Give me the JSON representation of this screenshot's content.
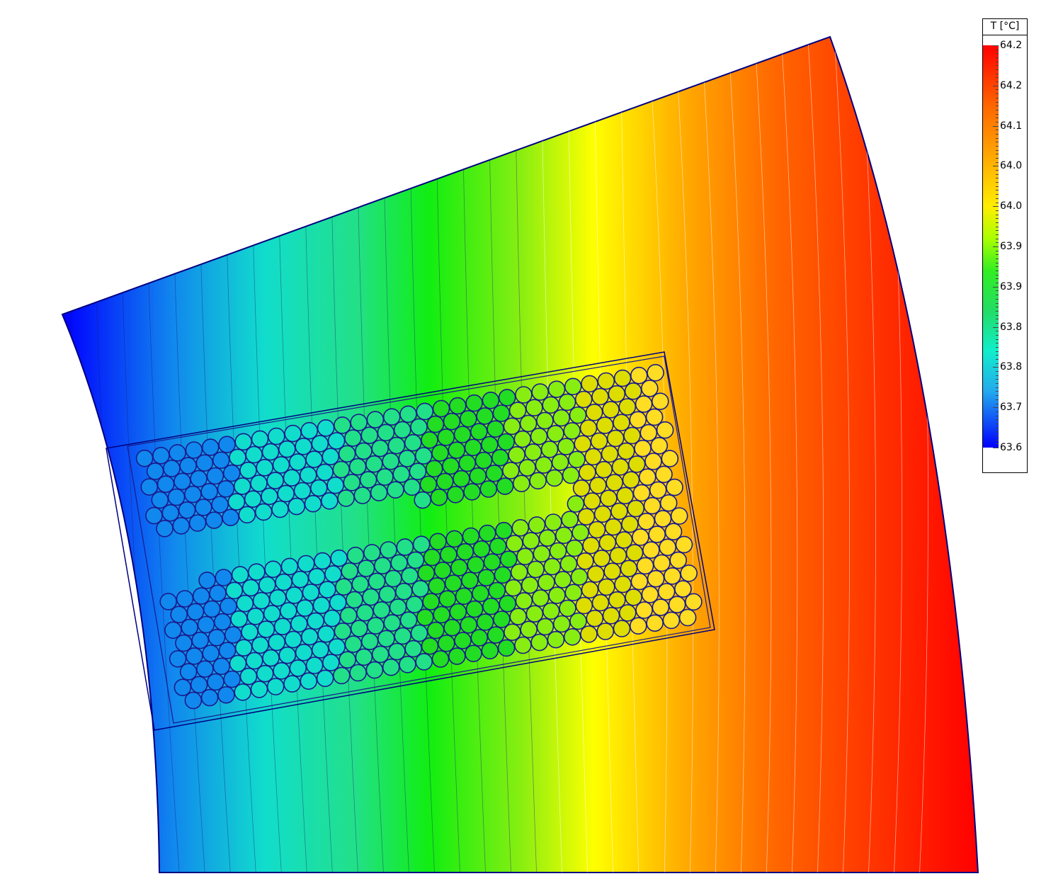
{
  "legend": {
    "title": "T [°C]",
    "labels": [
      "64.2",
      "64.2",
      "64.1",
      "64.0",
      "64.0",
      "63.9",
      "63.9",
      "63.8",
      "63.8",
      "63.7",
      "63.6"
    ]
  },
  "colors": {
    "domain_outline": "#000080",
    "coil_outline": "#1a1a8c",
    "contour_line_light": "#ffffff",
    "contour_line_dark": "#1a1a6e",
    "colormap": [
      "#0000ff",
      "#22aaee",
      "#11eecc",
      "#22dd66",
      "#33ee22",
      "#aaff00",
      "#ffee00",
      "#ffaa00",
      "#ff6600",
      "#ff0000"
    ]
  }
}
